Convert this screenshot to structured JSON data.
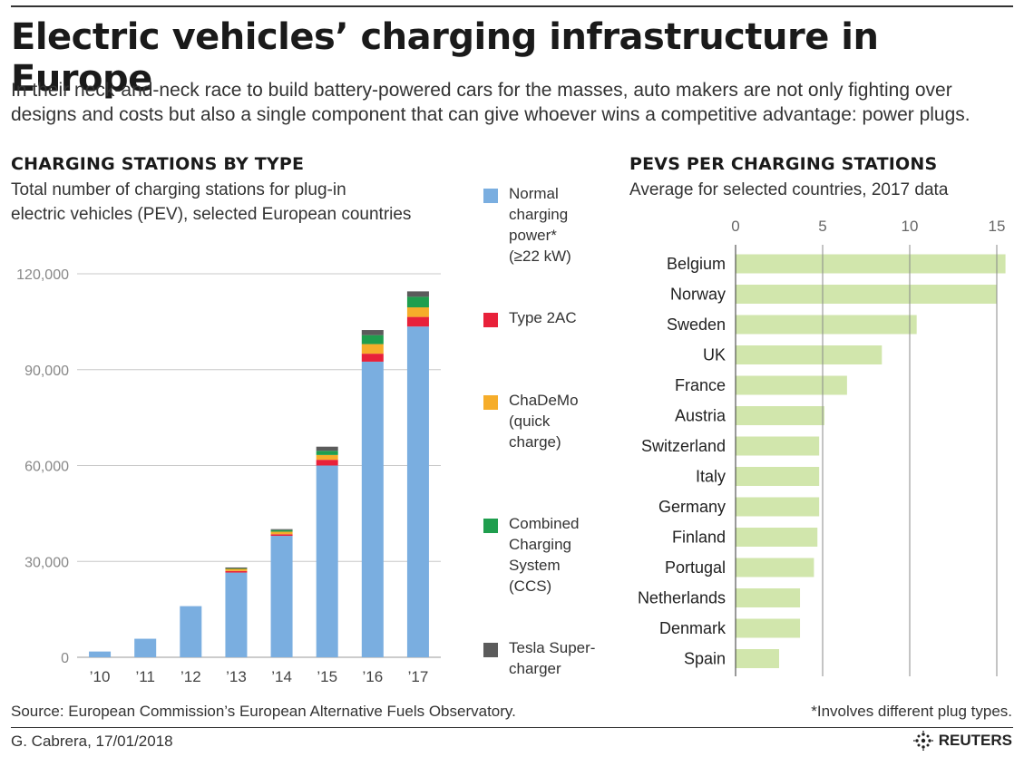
{
  "title": "Electric vehicles’ charging infrastructure in Europe",
  "intro": "In their neck-and-neck race to build battery-powered cars for the masses, auto makers are not only fighting over designs and costs but also a single component that can give whoever wins a competitive advantage: power plugs.",
  "left": {
    "heading": "CHARGING STATIONS BY TYPE",
    "subtitle_line1": "Total number of charging stations for plug-in",
    "subtitle_line2": "electric vehicles (PEV), selected European countries"
  },
  "right": {
    "heading": "PEVS PER CHARGING STATIONS",
    "subtitle": "Average for selected countries, 2017 data"
  },
  "legend": [
    {
      "lines": [
        "Normal",
        "charging",
        "power*",
        "(≥22 kW)"
      ],
      "color": "#7aaee0"
    },
    {
      "lines": [
        "Type 2AC"
      ],
      "color": "#e8213a"
    },
    {
      "lines": [
        "ChaDeMo",
        "(quick",
        "charge)"
      ],
      "color": "#f6ad2a"
    },
    {
      "lines": [
        "Combined",
        "Charging",
        "System",
        "(CCS)"
      ],
      "color": "#1f9e4e"
    },
    {
      "lines": [
        "Tesla Super-",
        "charger"
      ],
      "color": "#5b5b5b"
    }
  ],
  "footer": {
    "source": "Source: European Commission’s European Alternative Fuels Observatory.",
    "footnote": "*Involves different plug types.",
    "credit": "G. Cabrera, 17/01/2018",
    "brand": "REUTERS"
  },
  "chart_data": [
    {
      "type": "bar",
      "stacked": true,
      "title": "CHARGING STATIONS BY TYPE",
      "categories": [
        "’10",
        "’11",
        "’12",
        "’13",
        "’14",
        "’15",
        "’16",
        "’17"
      ],
      "series": [
        {
          "name": "Normal charging power* (≥22 kW)",
          "color": "#7aaee0",
          "values": [
            1800,
            5800,
            16000,
            26500,
            38000,
            60000,
            92500,
            103500
          ]
        },
        {
          "name": "Type 2AC",
          "color": "#e8213a",
          "values": [
            0,
            0,
            0,
            500,
            500,
            1800,
            2500,
            3000
          ]
        },
        {
          "name": "ChaDeMo (quick charge)",
          "color": "#f6ad2a",
          "values": [
            0,
            0,
            0,
            700,
            800,
            1500,
            3000,
            3000
          ]
        },
        {
          "name": "Combined Charging System (CCS)",
          "color": "#1f9e4e",
          "values": [
            0,
            0,
            0,
            100,
            500,
            1300,
            2800,
            3300
          ]
        },
        {
          "name": "Tesla Super-charger",
          "color": "#5b5b5b",
          "values": [
            0,
            0,
            0,
            300,
            300,
            1300,
            1600,
            1700
          ]
        }
      ],
      "ylim": [
        0,
        120000
      ],
      "yticks": [
        0,
        30000,
        60000,
        90000,
        120000
      ],
      "ytick_labels": [
        "0",
        "30,000",
        "60,000",
        "90,000",
        "120,000"
      ],
      "grid": true,
      "xlabel": "",
      "ylabel": ""
    },
    {
      "type": "bar",
      "orientation": "horizontal",
      "title": "PEVS PER CHARGING STATIONS",
      "subtitle": "Average for selected countries, 2017 data",
      "categories": [
        "Belgium",
        "Norway",
        "Sweden",
        "UK",
        "France",
        "Austria",
        "Switzerland",
        "Italy",
        "Germany",
        "Finland",
        "Portugal",
        "Netherlands",
        "Denmark",
        "Spain"
      ],
      "values": [
        15.5,
        15.0,
        10.4,
        8.4,
        6.4,
        5.1,
        4.8,
        4.8,
        4.8,
        4.7,
        4.5,
        3.7,
        3.7,
        2.5
      ],
      "color": "#d1e6ac",
      "xlim": [
        0,
        15.5
      ],
      "xticks": [
        0,
        5,
        10,
        15
      ],
      "xtick_labels": [
        "0",
        "5",
        "10",
        "15"
      ],
      "tick_position": "top",
      "grid": true
    }
  ]
}
